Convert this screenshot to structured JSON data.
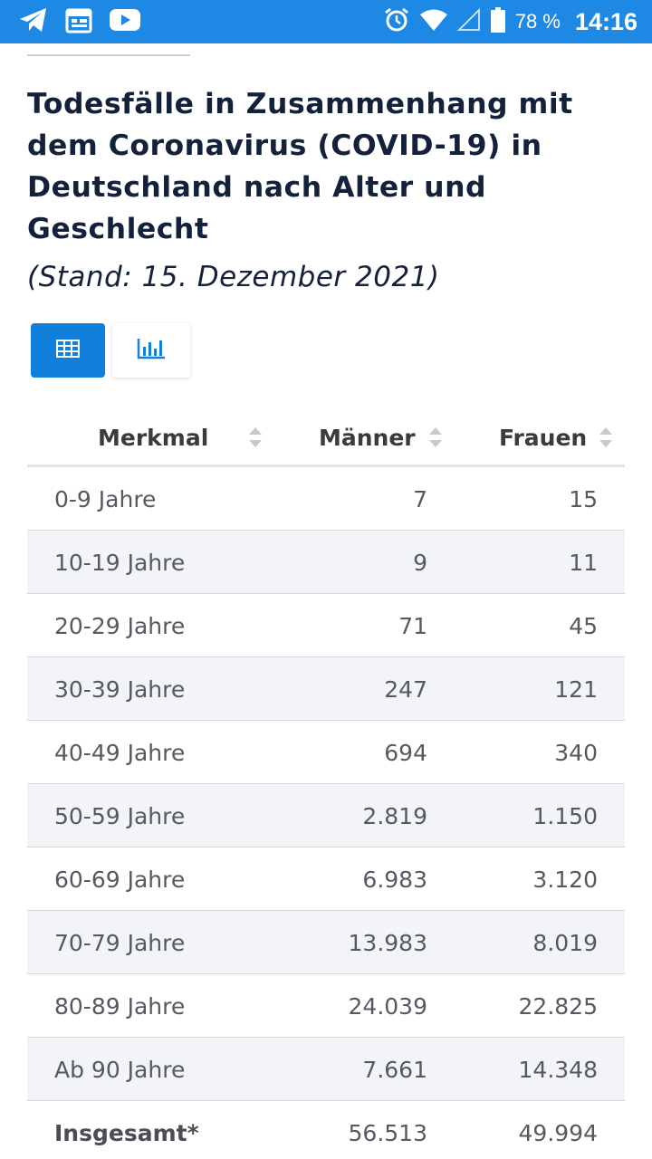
{
  "status_bar": {
    "battery": "78 %",
    "time": "14:16",
    "icons": [
      "telegram-icon",
      "calendar-icon",
      "youtube-icon",
      "alarm-icon",
      "wifi-icon",
      "signal-icon",
      "battery-icon"
    ]
  },
  "colors": {
    "status_bar": "#1e88e5",
    "title": "#14213b",
    "accent_button": "#1080dc"
  },
  "header": {
    "title": "Todesfälle in Zusammenhang mit dem Coronavirus (COVID-19) in Deutschland nach Alter und Geschlecht",
    "subtitle": "(Stand: 15. Dezember 2021)"
  },
  "view_toggle": {
    "active": "table",
    "buttons": [
      "table-view",
      "chart-view"
    ]
  },
  "table": {
    "columns": [
      "Merkmal",
      "Männer",
      "Frauen"
    ],
    "rows": [
      {
        "label": "0-9 Jahre",
        "maenner": "7",
        "frauen": "15"
      },
      {
        "label": "10-19 Jahre",
        "maenner": "9",
        "frauen": "11"
      },
      {
        "label": "20-29 Jahre",
        "maenner": "71",
        "frauen": "45"
      },
      {
        "label": "30-39 Jahre",
        "maenner": "247",
        "frauen": "121"
      },
      {
        "label": "40-49 Jahre",
        "maenner": "694",
        "frauen": "340"
      },
      {
        "label": "50-59 Jahre",
        "maenner": "2.819",
        "frauen": "1.150"
      },
      {
        "label": "60-69 Jahre",
        "maenner": "6.983",
        "frauen": "3.120"
      },
      {
        "label": "70-79 Jahre",
        "maenner": "13.983",
        "frauen": "8.019"
      },
      {
        "label": "80-89 Jahre",
        "maenner": "24.039",
        "frauen": "22.825"
      },
      {
        "label": "Ab 90 Jahre",
        "maenner": "7.661",
        "frauen": "14.348"
      },
      {
        "label": "Insgesamt*",
        "maenner": "56.513",
        "frauen": "49.994"
      }
    ]
  }
}
